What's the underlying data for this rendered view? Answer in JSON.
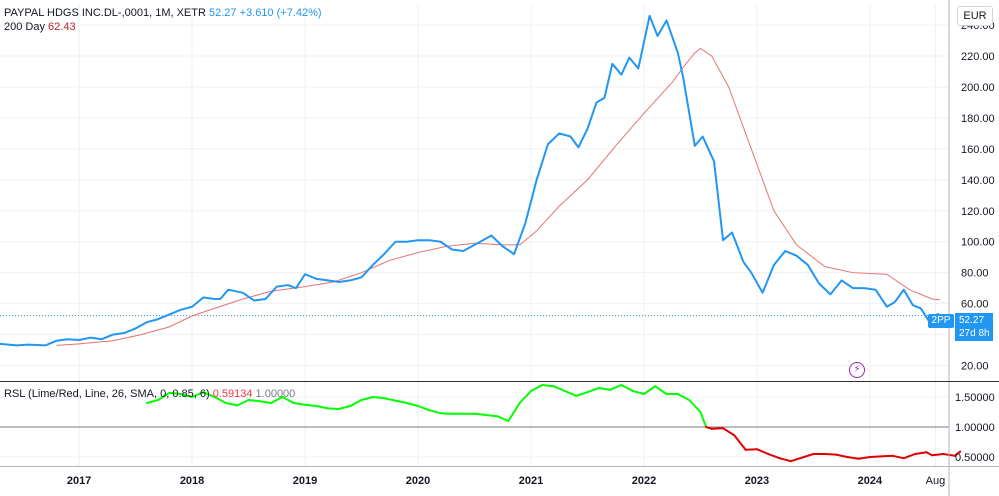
{
  "header": {
    "symbol_label": "PAYPAL HDGS INC.DL-,0001, 1M, XETR",
    "last_price": "52.27",
    "change": "+3.610 (+7.42%)",
    "ma_label": "200 Day",
    "ma_value": "62.43",
    "currency": "EUR"
  },
  "price_badge": {
    "ticker": "2PP",
    "price": "52.27",
    "countdown": "27d 8h"
  },
  "rsl_legend": {
    "label": "RSL (Lime/Red, Line, 26, SMA, 0, 0.85, 6)",
    "value": "0.59134",
    "ref_value": "1.00000"
  },
  "colors": {
    "price_line": "#2196f3",
    "ma_line": "#e57373",
    "rsl_up": "#00ff00",
    "rsl_down": "#e00000",
    "grid": "#eef0f4",
    "badge_bg": "#2196f3"
  },
  "icons": {
    "flash_icon": "lightning-bolt-icon"
  },
  "chart_data": {
    "type": "line",
    "title": "PAYPAL HDGS INC.DL-,0001, 1M, XETR",
    "x_labels": [
      "2017",
      "2018",
      "2019",
      "2020",
      "2021",
      "2022",
      "2023",
      "2024",
      "Aug"
    ],
    "x_label_years": [
      2017,
      2018,
      2019,
      2020,
      2021,
      2022,
      2023,
      2024,
      2024.58
    ],
    "xlim": [
      2016.3,
      2024.7
    ],
    "price_panel": {
      "ylim": [
        10,
        253
      ],
      "y_ticks": [
        "20.00",
        "40.00",
        "60.00",
        "80.00",
        "100.00",
        "120.00",
        "140.00",
        "160.00",
        "180.00",
        "200.00",
        "220.00",
        "240.00"
      ],
      "y_tick_values": [
        20,
        40,
        60,
        80,
        100,
        120,
        140,
        160,
        180,
        200,
        220,
        240
      ],
      "current_price_line": 52.27,
      "series": [
        {
          "name": "PAYPAL HDGS INC.DL-,0001",
          "points": [
            [
              2016.3,
              34
            ],
            [
              2016.45,
              33
            ],
            [
              2016.55,
              33.5
            ],
            [
              2016.7,
              33
            ],
            [
              2016.8,
              36
            ],
            [
              2016.9,
              37
            ],
            [
              2017.0,
              36.5
            ],
            [
              2017.1,
              38
            ],
            [
              2017.2,
              37
            ],
            [
              2017.3,
              40
            ],
            [
              2017.4,
              41
            ],
            [
              2017.5,
              44
            ],
            [
              2017.6,
              48
            ],
            [
              2017.7,
              50
            ],
            [
              2017.8,
              53
            ],
            [
              2017.9,
              56
            ],
            [
              2018.0,
              58
            ],
            [
              2018.1,
              64
            ],
            [
              2018.2,
              63
            ],
            [
              2018.25,
              63
            ],
            [
              2018.32,
              69
            ],
            [
              2018.45,
              67
            ],
            [
              2018.55,
              62
            ],
            [
              2018.65,
              63
            ],
            [
              2018.75,
              71
            ],
            [
              2018.85,
              72
            ],
            [
              2018.92,
              70
            ],
            [
              2019.0,
              79
            ],
            [
              2019.1,
              76
            ],
            [
              2019.2,
              75
            ],
            [
              2019.3,
              74
            ],
            [
              2019.4,
              75
            ],
            [
              2019.5,
              77
            ],
            [
              2019.6,
              85
            ],
            [
              2019.7,
              92
            ],
            [
              2019.8,
              100
            ],
            [
              2019.9,
              100
            ],
            [
              2020.0,
              101
            ],
            [
              2020.1,
              101
            ],
            [
              2020.2,
              100
            ],
            [
              2020.3,
              95
            ],
            [
              2020.4,
              94
            ],
            [
              2020.5,
              98
            ],
            [
              2020.6,
              102
            ],
            [
              2020.65,
              104
            ],
            [
              2020.75,
              97
            ],
            [
              2020.85,
              92
            ],
            [
              2020.95,
              112
            ],
            [
              2021.05,
              140
            ],
            [
              2021.15,
              163
            ],
            [
              2021.25,
              170
            ],
            [
              2021.35,
              168
            ],
            [
              2021.42,
              161
            ],
            [
              2021.5,
              173
            ],
            [
              2021.58,
              190
            ],
            [
              2021.65,
              193
            ],
            [
              2021.72,
              215
            ],
            [
              2021.8,
              208
            ],
            [
              2021.87,
              219
            ],
            [
              2021.95,
              212
            ],
            [
              2022.05,
              246
            ],
            [
              2022.12,
              233
            ],
            [
              2022.2,
              243
            ],
            [
              2022.3,
              222
            ],
            [
              2022.35,
              205
            ],
            [
              2022.45,
              162
            ],
            [
              2022.52,
              168
            ],
            [
              2022.62,
              152
            ],
            [
              2022.7,
              101
            ],
            [
              2022.78,
              106
            ],
            [
              2022.88,
              87
            ],
            [
              2022.95,
              80
            ],
            [
              2023.05,
              67
            ],
            [
              2023.15,
              85
            ],
            [
              2023.25,
              94
            ],
            [
              2023.35,
              91
            ],
            [
              2023.45,
              85
            ],
            [
              2023.55,
              73
            ],
            [
              2023.65,
              66
            ],
            [
              2023.75,
              75
            ],
            [
              2023.85,
              70
            ],
            [
              2023.95,
              70
            ],
            [
              2024.05,
              69
            ],
            [
              2024.15,
              58
            ],
            [
              2024.22,
              61
            ],
            [
              2024.3,
              69
            ],
            [
              2024.38,
              59
            ],
            [
              2024.45,
              57
            ],
            [
              2024.52,
              49
            ],
            [
              2024.6,
              52.27
            ]
          ]
        },
        {
          "name": "200 Day",
          "points": [
            [
              2016.8,
              33
            ],
            [
              2017.0,
              34
            ],
            [
              2017.3,
              36
            ],
            [
              2017.55,
              40
            ],
            [
              2017.8,
              45
            ],
            [
              2018.0,
              52
            ],
            [
              2018.2,
              57
            ],
            [
              2018.45,
              63
            ],
            [
              2018.7,
              68
            ],
            [
              2019.0,
              71
            ],
            [
              2019.25,
              74
            ],
            [
              2019.5,
              80
            ],
            [
              2019.75,
              88
            ],
            [
              2020.0,
              93
            ],
            [
              2020.25,
              97
            ],
            [
              2020.5,
              99
            ],
            [
              2020.75,
              98
            ],
            [
              2020.9,
              98
            ],
            [
              2021.05,
              107
            ],
            [
              2021.25,
              123
            ],
            [
              2021.5,
              140
            ],
            [
              2021.75,
              162
            ],
            [
              2022.0,
              183
            ],
            [
              2022.25,
              203
            ],
            [
              2022.35,
              213
            ],
            [
              2022.45,
              222
            ],
            [
              2022.5,
              225
            ],
            [
              2022.6,
              220
            ],
            [
              2022.75,
              200
            ],
            [
              2022.95,
              160
            ],
            [
              2023.15,
              120
            ],
            [
              2023.35,
              98
            ],
            [
              2023.6,
              84
            ],
            [
              2023.85,
              80
            ],
            [
              2024.15,
              79
            ],
            [
              2024.35,
              69
            ],
            [
              2024.55,
              63
            ],
            [
              2024.62,
              62.43
            ]
          ]
        }
      ]
    },
    "rsl_panel": {
      "ylim": [
        0.35,
        1.75
      ],
      "y_ticks": [
        "0.50000",
        "1.00000",
        "1.50000"
      ],
      "y_tick_values": [
        0.5,
        1.0,
        1.5
      ],
      "reference_line": 1.0,
      "series": [
        {
          "name": "RSL",
          "threshold": 1.0,
          "points": [
            [
              2017.6,
              1.4
            ],
            [
              2017.7,
              1.45
            ],
            [
              2017.8,
              1.57
            ],
            [
              2017.9,
              1.55
            ],
            [
              2018.0,
              1.5
            ],
            [
              2018.1,
              1.58
            ],
            [
              2018.2,
              1.5
            ],
            [
              2018.3,
              1.4
            ],
            [
              2018.4,
              1.36
            ],
            [
              2018.5,
              1.45
            ],
            [
              2018.6,
              1.43
            ],
            [
              2018.7,
              1.4
            ],
            [
              2018.8,
              1.5
            ],
            [
              2018.9,
              1.4
            ],
            [
              2019.0,
              1.37
            ],
            [
              2019.1,
              1.35
            ],
            [
              2019.2,
              1.31
            ],
            [
              2019.3,
              1.3
            ],
            [
              2019.4,
              1.35
            ],
            [
              2019.5,
              1.45
            ],
            [
              2019.6,
              1.5
            ],
            [
              2019.7,
              1.48
            ],
            [
              2019.8,
              1.44
            ],
            [
              2019.9,
              1.4
            ],
            [
              2020.0,
              1.35
            ],
            [
              2020.1,
              1.28
            ],
            [
              2020.2,
              1.23
            ],
            [
              2020.3,
              1.22
            ],
            [
              2020.4,
              1.22
            ],
            [
              2020.5,
              1.22
            ],
            [
              2020.6,
              1.2
            ],
            [
              2020.7,
              1.18
            ],
            [
              2020.8,
              1.1
            ],
            [
              2020.9,
              1.4
            ],
            [
              2021.0,
              1.6
            ],
            [
              2021.1,
              1.7
            ],
            [
              2021.2,
              1.68
            ],
            [
              2021.3,
              1.6
            ],
            [
              2021.4,
              1.52
            ],
            [
              2021.5,
              1.58
            ],
            [
              2021.6,
              1.65
            ],
            [
              2021.7,
              1.62
            ],
            [
              2021.8,
              1.7
            ],
            [
              2021.9,
              1.6
            ],
            [
              2022.0,
              1.55
            ],
            [
              2022.1,
              1.68
            ],
            [
              2022.2,
              1.55
            ],
            [
              2022.3,
              1.55
            ],
            [
              2022.4,
              1.45
            ],
            [
              2022.5,
              1.25
            ],
            [
              2022.55,
              1.0
            ],
            [
              2022.6,
              0.97
            ],
            [
              2022.7,
              0.98
            ],
            [
              2022.8,
              0.86
            ],
            [
              2022.9,
              0.62
            ],
            [
              2023.0,
              0.63
            ],
            [
              2023.1,
              0.55
            ],
            [
              2023.2,
              0.48
            ],
            [
              2023.3,
              0.43
            ],
            [
              2023.4,
              0.49
            ],
            [
              2023.5,
              0.55
            ],
            [
              2023.6,
              0.55
            ],
            [
              2023.7,
              0.54
            ],
            [
              2023.8,
              0.5
            ],
            [
              2023.9,
              0.47
            ],
            [
              2024.0,
              0.5
            ],
            [
              2024.1,
              0.51
            ],
            [
              2024.2,
              0.52
            ],
            [
              2024.3,
              0.48
            ],
            [
              2024.4,
              0.55
            ],
            [
              2024.5,
              0.58
            ],
            [
              2024.55,
              0.53
            ],
            [
              2024.65,
              0.55
            ],
            [
              2024.75,
              0.52
            ],
            [
              2024.8,
              0.59134
            ]
          ]
        }
      ]
    }
  }
}
